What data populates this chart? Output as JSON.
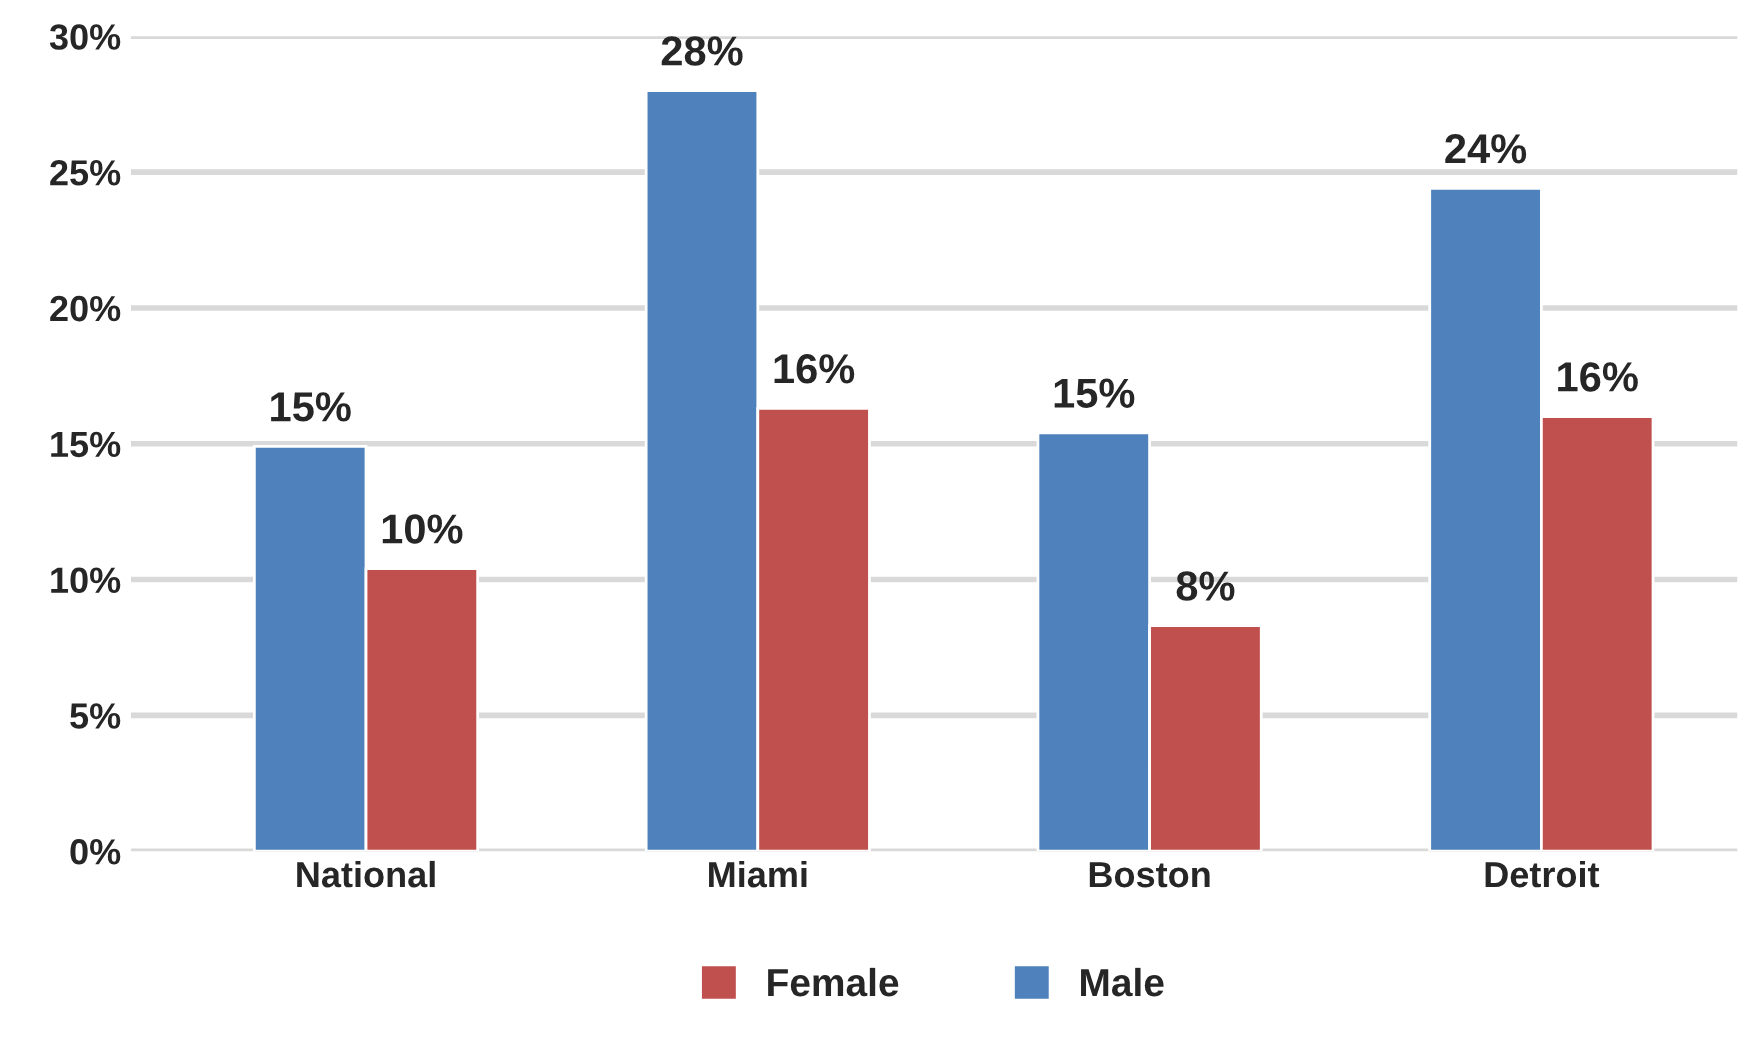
{
  "chart_data": {
    "type": "bar",
    "categories": [
      "National",
      "Miami",
      "Boston",
      "Detroit"
    ],
    "series": [
      {
        "name": "Male",
        "color": "#4f81bd",
        "values": [
          14.9,
          28.0,
          15.4,
          24.4
        ],
        "value_labels": [
          "15%",
          "28%",
          "15%",
          "24%"
        ]
      },
      {
        "name": "Female",
        "color": "#c0504d",
        "values": [
          10.4,
          16.3,
          8.3,
          16.0
        ],
        "value_labels": [
          "10%",
          "16%",
          "8%",
          "16%"
        ]
      }
    ],
    "ylim": [
      0,
      30
    ],
    "yticks": [
      {
        "value": 0,
        "label": "0%"
      },
      {
        "value": 5,
        "label": "5%"
      },
      {
        "value": 10,
        "label": "10%"
      },
      {
        "value": 15,
        "label": "15%"
      },
      {
        "value": 20,
        "label": "20%"
      },
      {
        "value": 25,
        "label": "25%"
      },
      {
        "value": 30,
        "label": "30%"
      }
    ],
    "grid": "y",
    "legend": "bottom"
  }
}
